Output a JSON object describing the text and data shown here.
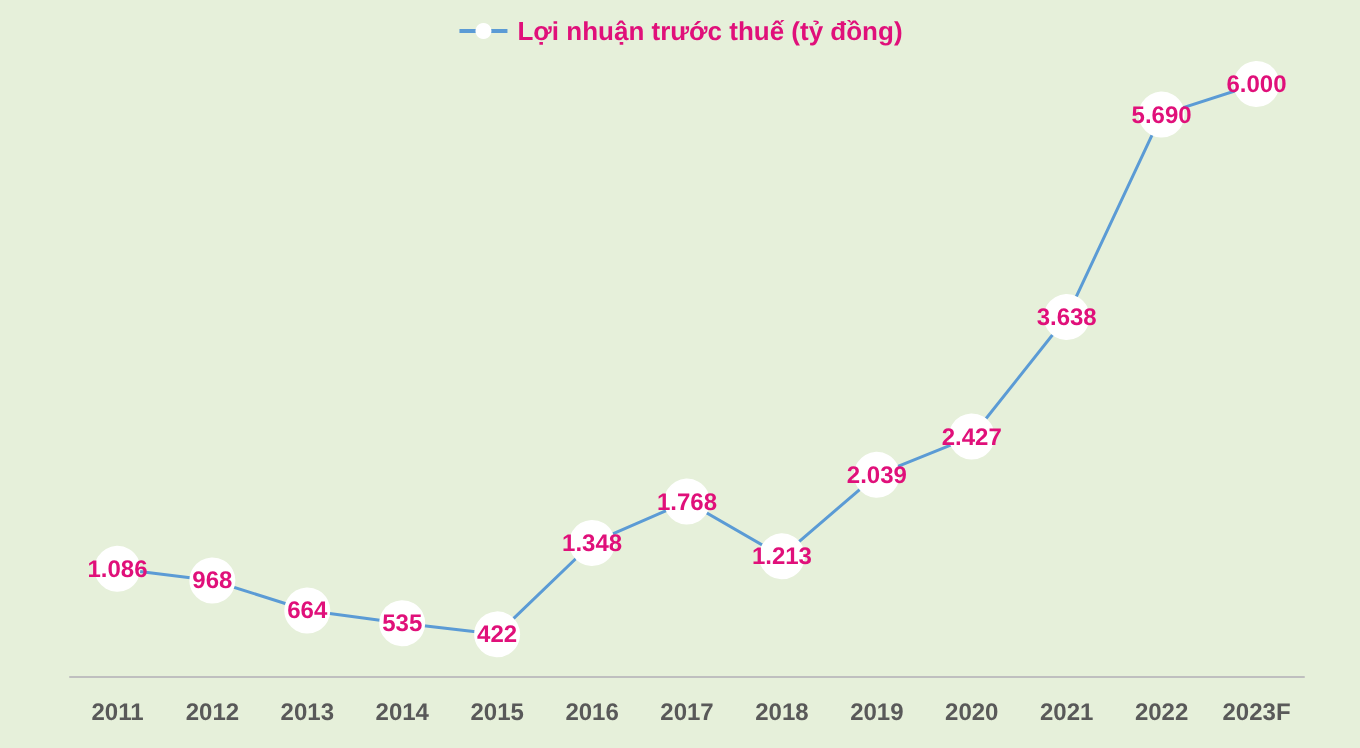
{
  "chart_data": {
    "type": "line",
    "categories": [
      "2011",
      "2012",
      "2013",
      "2014",
      "2015",
      "2016",
      "2017",
      "2018",
      "2019",
      "2020",
      "2021",
      "2022",
      "2023F"
    ],
    "series": [
      {
        "name": "Lợi nhuận trước thuế (tỷ đồng)",
        "color": "#5b9bd5",
        "values": [
          1086,
          968,
          664,
          535,
          422,
          1348,
          1768,
          1213,
          2039,
          2427,
          3638,
          5690,
          6000
        ],
        "value_labels": [
          "1.086",
          "968",
          "664",
          "535",
          "422",
          "1.348",
          "1.768",
          "1.213",
          "2.039",
          "2.427",
          "3.638",
          "5.690",
          "6.000"
        ]
      }
    ],
    "legend": "top",
    "marker": "circle",
    "line_style": "solid",
    "grid": false
  }
}
